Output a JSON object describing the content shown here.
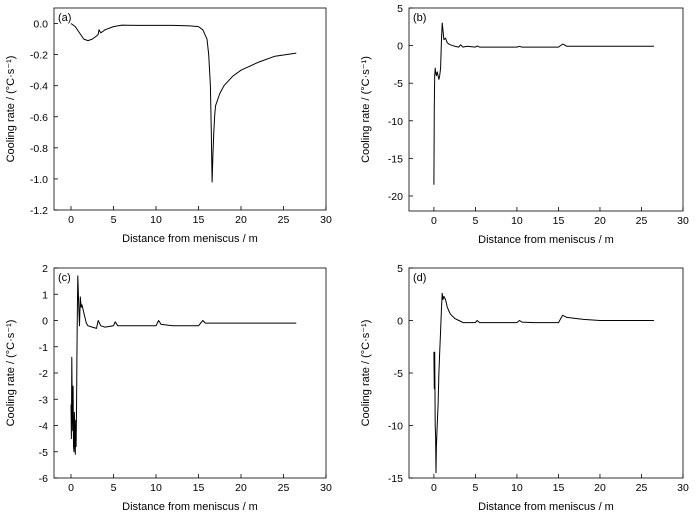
{
  "chart_data": [
    {
      "type": "line",
      "panel_label": "(a)",
      "xlabel": "Distance from meniscus / m",
      "ylabel": "Cooling rate / (°C·s⁻¹)",
      "xlim": [
        -2,
        30
      ],
      "ylim": [
        -1.2,
        0.1
      ],
      "xticks": [
        0,
        5,
        10,
        15,
        20,
        25,
        30
      ],
      "xtick_labels": [
        "0",
        "5",
        "10",
        "15",
        "20",
        "25",
        "30"
      ],
      "yticks": [
        0.0,
        -0.2,
        -0.4,
        -0.6,
        -0.8,
        -1.0,
        -1.2
      ],
      "ytick_labels": [
        "0.0",
        "-0.2",
        "-0.4",
        "-0.6",
        "-0.8",
        "-1.0",
        "-1.2"
      ],
      "grid": false,
      "series": [
        {
          "x": [
            0,
            0.5,
            1,
            1.5,
            2,
            2.5,
            3,
            3.2,
            3.3,
            3.5,
            4,
            5,
            6,
            8,
            10,
            12,
            14,
            15,
            15.5,
            16,
            16.2,
            16.4,
            16.5,
            16.6,
            16.7,
            16.8,
            16.9,
            17,
            17.5,
            18,
            19,
            20,
            22,
            24,
            26.5
          ],
          "y": [
            0,
            -0.02,
            -0.06,
            -0.1,
            -0.11,
            -0.1,
            -0.08,
            -0.07,
            -0.04,
            -0.06,
            -0.04,
            -0.02,
            -0.01,
            -0.012,
            -0.012,
            -0.012,
            -0.015,
            -0.02,
            -0.04,
            -0.1,
            -0.2,
            -0.4,
            -0.7,
            -1.02,
            -0.85,
            -0.7,
            -0.6,
            -0.53,
            -0.45,
            -0.4,
            -0.34,
            -0.3,
            -0.25,
            -0.21,
            -0.19
          ]
        }
      ]
    },
    {
      "type": "line",
      "panel_label": "(b)",
      "xlabel": "Distance from meniscus / m",
      "ylabel": "Cooling rate / (°C·s⁻¹)",
      "xlim": [
        -3,
        30
      ],
      "ylim": [
        -22,
        5
      ],
      "xticks": [
        0,
        5,
        10,
        15,
        20,
        25,
        30
      ],
      "xtick_labels": [
        "0",
        "5",
        "10",
        "15",
        "20",
        "25",
        "30"
      ],
      "yticks": [
        5,
        0,
        -5,
        -10,
        -15,
        -20
      ],
      "ytick_labels": [
        "5",
        "0",
        "-5",
        "-10",
        "-15",
        "-20"
      ],
      "grid": false,
      "series": [
        {
          "x": [
            0,
            0.05,
            0.1,
            0.15,
            0.2,
            0.3,
            0.4,
            0.5,
            0.6,
            0.7,
            0.8,
            0.9,
            1.0,
            1.1,
            1.2,
            1.4,
            1.6,
            1.8,
            2.0,
            2.5,
            3.0,
            3.2,
            3.5,
            4,
            5,
            5.2,
            5.5,
            7,
            10,
            10.3,
            10.6,
            12,
            15,
            15.5,
            15.7,
            16.0,
            17,
            20,
            23,
            26.5
          ],
          "y": [
            -18.5,
            -8,
            -4,
            -3,
            -3.5,
            -4,
            -3.5,
            -4,
            -4.5,
            -4,
            -3,
            0.5,
            3,
            2,
            0.8,
            1.0,
            0.4,
            0.2,
            0.1,
            -0.1,
            -0.2,
            0.1,
            -0.2,
            -0.1,
            -0.2,
            -0.05,
            -0.2,
            -0.2,
            -0.2,
            -0.1,
            -0.2,
            -0.2,
            -0.2,
            0.2,
            0.1,
            -0.1,
            -0.1,
            -0.1,
            -0.1,
            -0.1
          ]
        }
      ]
    },
    {
      "type": "line",
      "panel_label": "(c)",
      "xlabel": "Distance from meniscus / m",
      "ylabel": "Cooling rate / (°C·s⁻¹)",
      "xlim": [
        -2,
        30
      ],
      "ylim": [
        -6,
        2
      ],
      "xticks": [
        0,
        5,
        10,
        15,
        20,
        25,
        30
      ],
      "xtick_labels": [
        "0",
        "5",
        "10",
        "15",
        "20",
        "25",
        "30"
      ],
      "yticks": [
        2,
        1,
        0,
        -1,
        -2,
        -3,
        -4,
        -5,
        -6
      ],
      "ytick_labels": [
        "2",
        "1",
        "0",
        "-1",
        "-2",
        "-3",
        "-4",
        "-5",
        "-6"
      ],
      "grid": false,
      "series": [
        {
          "x": [
            0,
            0.05,
            0.1,
            0.15,
            0.2,
            0.25,
            0.3,
            0.35,
            0.4,
            0.45,
            0.5,
            0.55,
            0.6,
            0.65,
            0.7,
            0.75,
            0.8,
            0.9,
            1.0,
            1.1,
            1.2,
            1.3,
            1.5,
            1.8,
            2.0,
            2.5,
            3.0,
            3.2,
            3.5,
            4,
            5,
            5.2,
            5.5,
            7,
            10,
            10.3,
            10.6,
            12,
            15,
            15.5,
            15.8,
            16.2,
            17,
            20,
            23,
            26.5
          ],
          "y": [
            -3.2,
            -4.5,
            -1.4,
            -3.5,
            -4.2,
            -2.5,
            -4.8,
            -5.0,
            -3.5,
            -4.5,
            -5.1,
            -3.8,
            -4.8,
            -3.5,
            -1.0,
            0.5,
            1.7,
            0.6,
            -0.2,
            0.9,
            0.5,
            0.6,
            0.3,
            -0.1,
            -0.2,
            -0.25,
            -0.3,
            0.0,
            -0.2,
            -0.25,
            -0.2,
            -0.05,
            -0.2,
            -0.2,
            -0.2,
            0.0,
            -0.15,
            -0.2,
            -0.2,
            0.0,
            -0.1,
            -0.1,
            -0.1,
            -0.1,
            -0.1,
            -0.1
          ]
        }
      ]
    },
    {
      "type": "line",
      "panel_label": "(d)",
      "xlabel": "Distance from meniscus / m",
      "ylabel": "Cooling rate / (°C·s⁻¹)",
      "xlim": [
        -3,
        30
      ],
      "ylim": [
        -15,
        5
      ],
      "xticks": [
        0,
        5,
        10,
        15,
        20,
        25,
        30
      ],
      "xtick_labels": [
        "0",
        "5",
        "10",
        "15",
        "20",
        "25",
        "30"
      ],
      "yticks": [
        5,
        0,
        -5,
        -10,
        -15
      ],
      "ytick_labels": [
        "5",
        "0",
        "-5",
        "-10",
        "-15"
      ],
      "grid": false,
      "series": [
        {
          "x": [
            0,
            0.05,
            0.1,
            0.15,
            0.2,
            0.25,
            0.3,
            0.4,
            0.5,
            0.6,
            0.7,
            0.8,
            0.9,
            1.0,
            1.1,
            1.2,
            1.4,
            1.6,
            1.8,
            2.0,
            2.5,
            3.0,
            3.5,
            4,
            5,
            5.2,
            5.5,
            7,
            10,
            10.3,
            10.6,
            12,
            15,
            15.5,
            16,
            17,
            18,
            20,
            23,
            26.5
          ],
          "y": [
            -3,
            -6.5,
            -3,
            -10,
            -11,
            -14.5,
            -12,
            -10,
            -8,
            -5,
            -3,
            -1,
            1,
            2.6,
            2.0,
            2.3,
            2.0,
            1.3,
            0.9,
            0.6,
            0.2,
            0.0,
            -0.2,
            -0.2,
            -0.2,
            0.0,
            -0.2,
            -0.2,
            -0.2,
            0.0,
            -0.15,
            -0.2,
            -0.2,
            0.5,
            0.3,
            0.2,
            0.1,
            0.0,
            0.0,
            0.0
          ]
        }
      ]
    }
  ]
}
